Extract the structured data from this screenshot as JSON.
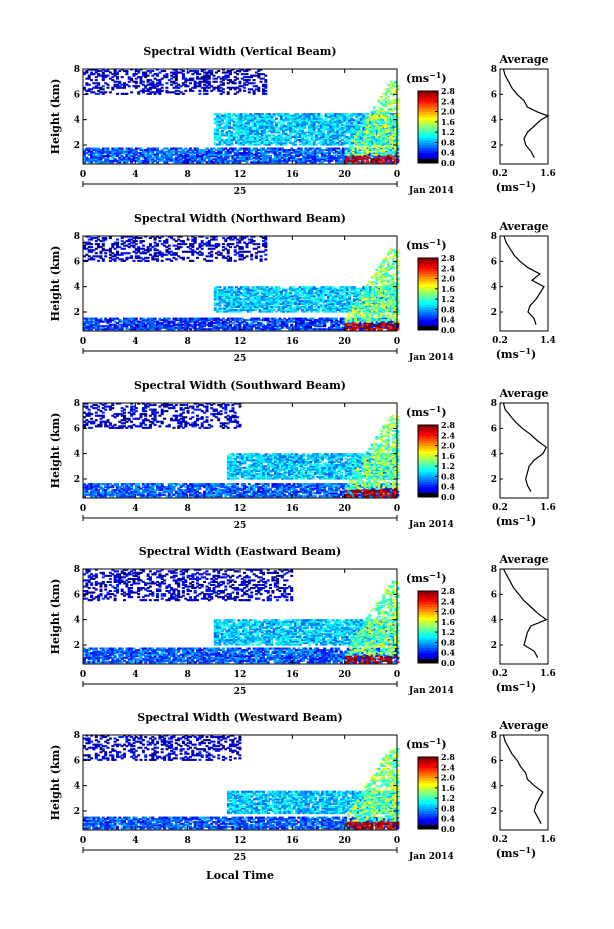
{
  "figure": {
    "xlabel": "Local Time",
    "date_label": "Jan 2014",
    "day_label": "25",
    "colorbar_unit": "(ms",
    "colorbar_unit_exp": "−1",
    "avg_title": "Average",
    "avg_unit": "(ms",
    "avg_unit_exp": "−1"
  },
  "chart_data": [
    {
      "type": "heatmap",
      "title": "Spectral Width (Vertical Beam)",
      "ylabel": "Height (km)",
      "x_ticks": [
        "0",
        "4",
        "8",
        "12",
        "16",
        "20",
        "0"
      ],
      "y_ticks": [
        "2",
        "4",
        "6",
        "8"
      ],
      "xlim": [
        0,
        24
      ],
      "ylim": [
        0.5,
        8
      ],
      "colorbar_ticks": [
        "0.0",
        "0.4",
        "0.8",
        "1.2",
        "1.6",
        "2.0",
        "2.4",
        "2.8"
      ],
      "colorbar_range": [
        0,
        2.8
      ],
      "layers": [
        {
          "name": "low_layer",
          "x_range": [
            0,
            24
          ],
          "height_range": [
            0.6,
            1.8
          ],
          "value": 0.6
        },
        {
          "name": "mid_layer",
          "x_range": [
            10,
            24
          ],
          "height_range": [
            2.0,
            4.5
          ],
          "value": 0.9
        },
        {
          "name": "upper_sparse",
          "x_range": [
            0,
            14
          ],
          "height_range": [
            6.0,
            8.0
          ],
          "value": 0.2
        },
        {
          "name": "late_convection",
          "x_range": [
            20,
            24
          ],
          "height_range": [
            0.6,
            7.0
          ],
          "value": 2.0
        }
      ],
      "avg_profile": {
        "xlim": [
          0.2,
          1.6
        ],
        "x_ticks": [
          "0.2",
          "1.6"
        ],
        "y_ticks": [
          "2",
          "4",
          "6",
          "8"
        ],
        "height": [
          1.0,
          1.5,
          2.0,
          2.5,
          3.0,
          3.5,
          4.0,
          4.3,
          4.6,
          5.0,
          5.5,
          6.0,
          6.5,
          7.0,
          7.5,
          8.0
        ],
        "width": [
          1.2,
          1.1,
          0.95,
          0.9,
          1.0,
          1.2,
          1.4,
          1.6,
          1.3,
          1.0,
          0.9,
          0.7,
          0.55,
          0.45,
          0.35,
          0.3
        ]
      }
    },
    {
      "type": "heatmap",
      "title": "Spectral Width (Northward Beam)",
      "ylabel": "Height (km)",
      "x_ticks": [
        "0",
        "4",
        "8",
        "12",
        "16",
        "20",
        "0"
      ],
      "y_ticks": [
        "2",
        "4",
        "6",
        "8"
      ],
      "xlim": [
        0,
        24
      ],
      "ylim": [
        0.5,
        8
      ],
      "colorbar_ticks": [
        "0.0",
        "0.4",
        "0.8",
        "1.2",
        "1.6",
        "2.0",
        "2.4",
        "2.8"
      ],
      "colorbar_range": [
        0,
        2.8
      ],
      "layers": [
        {
          "name": "low_layer",
          "x_range": [
            0,
            24
          ],
          "height_range": [
            0.6,
            1.5
          ],
          "value": 0.5
        },
        {
          "name": "mid_layer",
          "x_range": [
            10,
            24
          ],
          "height_range": [
            2.0,
            4.0
          ],
          "value": 0.9
        },
        {
          "name": "upper_sparse",
          "x_range": [
            0,
            14
          ],
          "height_range": [
            6.0,
            8.0
          ],
          "value": 0.2
        },
        {
          "name": "late_convection",
          "x_range": [
            20,
            24
          ],
          "height_range": [
            0.6,
            7.0
          ],
          "value": 2.0
        }
      ],
      "avg_profile": {
        "xlim": [
          0.2,
          1.4
        ],
        "x_ticks": [
          "0.2",
          "1.4"
        ],
        "y_ticks": [
          "2",
          "4",
          "6",
          "8"
        ],
        "height": [
          1.0,
          1.5,
          2.0,
          2.5,
          3.0,
          3.5,
          4.0,
          4.5,
          5.0,
          5.5,
          6.0,
          6.5,
          7.0,
          7.5,
          8.0
        ],
        "width": [
          1.1,
          1.05,
          0.9,
          0.95,
          1.1,
          1.2,
          1.3,
          1.0,
          1.2,
          0.9,
          0.7,
          0.55,
          0.45,
          0.35,
          0.3
        ]
      }
    },
    {
      "type": "heatmap",
      "title": "Spectral Width (Southward Beam)",
      "ylabel": "Height (km)",
      "x_ticks": [
        "0",
        "4",
        "8",
        "12",
        "16",
        "20",
        "0"
      ],
      "y_ticks": [
        "2",
        "4",
        "6",
        "8"
      ],
      "xlim": [
        0,
        24
      ],
      "ylim": [
        0.5,
        8
      ],
      "colorbar_ticks": [
        "0.0",
        "0.4",
        "0.8",
        "1.2",
        "1.6",
        "2.0",
        "2.4",
        "2.8"
      ],
      "colorbar_range": [
        0,
        2.8
      ],
      "layers": [
        {
          "name": "low_layer",
          "x_range": [
            0,
            24
          ],
          "height_range": [
            0.6,
            1.6
          ],
          "value": 0.6
        },
        {
          "name": "mid_layer",
          "x_range": [
            11,
            24
          ],
          "height_range": [
            2.0,
            4.0
          ],
          "value": 0.9
        },
        {
          "name": "upper_sparse",
          "x_range": [
            0,
            12
          ],
          "height_range": [
            6.0,
            8.0
          ],
          "value": 0.2
        },
        {
          "name": "late_convection",
          "x_range": [
            20,
            24
          ],
          "height_range": [
            0.6,
            7.0
          ],
          "value": 2.0
        }
      ],
      "avg_profile": {
        "xlim": [
          0.2,
          1.6
        ],
        "x_ticks": [
          "0.2",
          "1.6"
        ],
        "y_ticks": [
          "2",
          "4",
          "6",
          "8"
        ],
        "height": [
          1.0,
          1.5,
          2.0,
          2.5,
          3.0,
          3.5,
          4.0,
          4.5,
          5.0,
          5.5,
          6.0,
          6.5,
          7.0,
          7.5,
          8.0
        ],
        "width": [
          1.1,
          1.0,
          0.95,
          1.0,
          1.05,
          1.2,
          1.45,
          1.55,
          1.3,
          1.1,
          0.85,
          0.65,
          0.5,
          0.35,
          0.3
        ]
      }
    },
    {
      "type": "heatmap",
      "title": "Spectral Width (Eastward Beam)",
      "ylabel": "Height (km)",
      "x_ticks": [
        "0",
        "4",
        "8",
        "12",
        "16",
        "20",
        "0"
      ],
      "y_ticks": [
        "2",
        "4",
        "6",
        "8"
      ],
      "xlim": [
        0,
        24
      ],
      "ylim": [
        0.5,
        8
      ],
      "colorbar_ticks": [
        "0.0",
        "0.4",
        "0.8",
        "1.2",
        "1.6",
        "2.0",
        "2.4",
        "2.8"
      ],
      "colorbar_range": [
        0,
        2.8
      ],
      "layers": [
        {
          "name": "low_layer",
          "x_range": [
            0,
            24
          ],
          "height_range": [
            0.6,
            1.8
          ],
          "value": 0.6
        },
        {
          "name": "mid_layer",
          "x_range": [
            10,
            24
          ],
          "height_range": [
            2.0,
            4.0
          ],
          "value": 0.9
        },
        {
          "name": "upper_sparse",
          "x_range": [
            0,
            16
          ],
          "height_range": [
            5.5,
            8.0
          ],
          "value": 0.2
        },
        {
          "name": "late_convection",
          "x_range": [
            20,
            24
          ],
          "height_range": [
            0.6,
            7.0
          ],
          "value": 2.0
        }
      ],
      "avg_profile": {
        "xlim": [
          0.2,
          1.6
        ],
        "x_ticks": [
          "0.2",
          "1.6"
        ],
        "y_ticks": [
          "2",
          "4",
          "6",
          "8"
        ],
        "height": [
          1.0,
          1.5,
          2.0,
          2.5,
          3.0,
          3.5,
          4.0,
          4.5,
          5.0,
          5.5,
          6.0,
          6.5,
          7.0,
          7.5,
          8.0
        ],
        "width": [
          1.3,
          1.2,
          0.9,
          0.95,
          1.0,
          1.1,
          1.55,
          1.3,
          1.1,
          0.9,
          0.75,
          0.6,
          0.5,
          0.4,
          0.3
        ]
      }
    },
    {
      "type": "heatmap",
      "title": "Spectral Width (Westward Beam)",
      "ylabel": "Height (km)",
      "x_ticks": [
        "0",
        "4",
        "8",
        "12",
        "16",
        "20",
        "0"
      ],
      "y_ticks": [
        "2",
        "4",
        "6",
        "8"
      ],
      "xlim": [
        0,
        24
      ],
      "ylim": [
        0.5,
        8
      ],
      "colorbar_ticks": [
        "0.0",
        "0.4",
        "0.8",
        "1.2",
        "1.6",
        "2.0",
        "2.4",
        "2.8"
      ],
      "colorbar_range": [
        0,
        2.8
      ],
      "layers": [
        {
          "name": "low_layer",
          "x_range": [
            0,
            24
          ],
          "height_range": [
            0.6,
            1.5
          ],
          "value": 0.6
        },
        {
          "name": "mid_layer",
          "x_range": [
            11,
            24
          ],
          "height_range": [
            1.8,
            3.5
          ],
          "value": 0.9
        },
        {
          "name": "upper_sparse",
          "x_range": [
            0,
            12
          ],
          "height_range": [
            6.0,
            8.0
          ],
          "value": 0.2
        },
        {
          "name": "late_convection",
          "x_range": [
            20,
            24
          ],
          "height_range": [
            0.6,
            7.0
          ],
          "value": 2.0
        }
      ],
      "avg_profile": {
        "xlim": [
          0.2,
          1.6
        ],
        "x_ticks": [
          "0.2",
          "1.6"
        ],
        "y_ticks": [
          "2",
          "4",
          "6",
          "8"
        ],
        "height": [
          1.0,
          1.5,
          2.0,
          2.5,
          3.0,
          3.5,
          4.0,
          4.5,
          5.0,
          5.5,
          6.0,
          6.5,
          7.0,
          7.5,
          8.0
        ],
        "width": [
          1.4,
          1.3,
          1.2,
          1.25,
          1.35,
          1.45,
          1.2,
          1.0,
          0.95,
          0.8,
          0.7,
          0.55,
          0.45,
          0.35,
          0.3
        ]
      }
    }
  ]
}
